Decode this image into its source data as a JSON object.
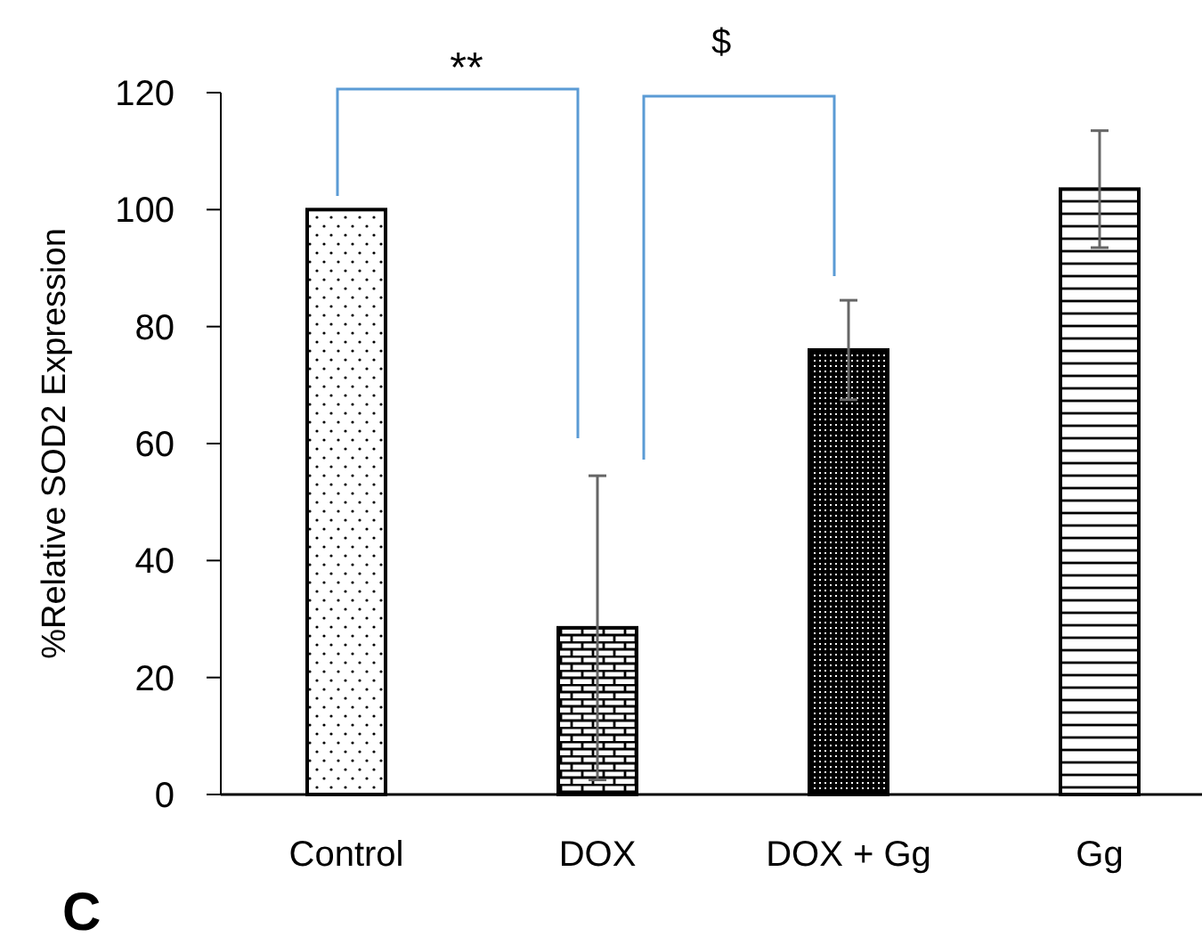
{
  "chart_data": {
    "type": "bar",
    "ylabel": "%Relative SOD2 Expression",
    "categories": [
      "Control",
      "DOX",
      "DOX + Gg",
      "Gg"
    ],
    "values": [
      100,
      28.5,
      76,
      103.5
    ],
    "errors": [
      null,
      26,
      8.5,
      10
    ],
    "colors": [
      "#000000",
      "#000000",
      "#000000",
      "#000000"
    ],
    "ylim": [
      0,
      120
    ],
    "yticks": [
      0,
      20,
      40,
      60,
      80,
      100,
      120
    ],
    "grid": false,
    "annotations": [
      "**",
      "$",
      "C"
    ]
  }
}
